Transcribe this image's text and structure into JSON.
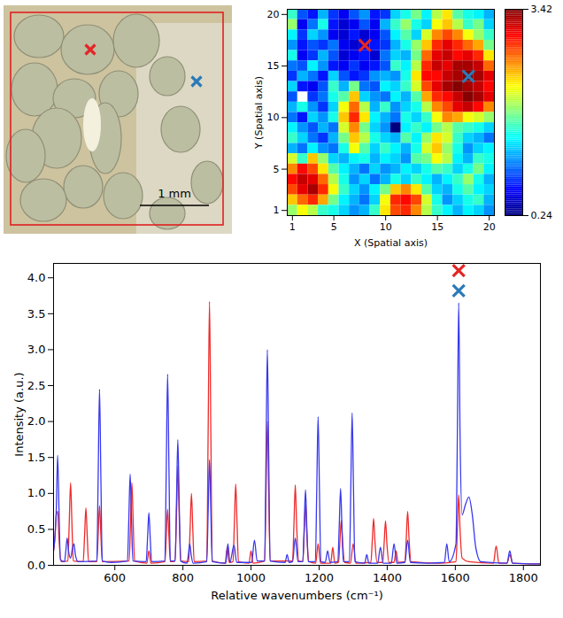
{
  "photo": {
    "scale_bar_label": "1 mm"
  },
  "chart_data": [
    {
      "type": "heatmap",
      "xlabel": "X (Spatial axis)",
      "ylabel": "Y (Spatial axis)",
      "x": [
        1,
        2,
        3,
        4,
        5,
        6,
        7,
        8,
        9,
        10,
        11,
        12,
        13,
        14,
        15,
        16,
        17,
        18,
        19,
        20
      ],
      "y": [
        20,
        19,
        18,
        17,
        16,
        15,
        14,
        13,
        12,
        11,
        10,
        9,
        8,
        7,
        6,
        5,
        4,
        3,
        2,
        1
      ],
      "values": [
        [
          1.6,
          0.9,
          0.7,
          1.2,
          0.8,
          0.6,
          0.9,
          1.1,
          0.7,
          0.8,
          1.3,
          1.5,
          1.8,
          1.4,
          2.0,
          2.3,
          1.7,
          1.5,
          1.4,
          1.2
        ],
        [
          1.9,
          0.6,
          1.0,
          1.5,
          0.7,
          0.5,
          0.6,
          0.9,
          0.6,
          1.2,
          1.6,
          1.9,
          1.5,
          1.3,
          2.2,
          2.4,
          2.0,
          1.6,
          1.8,
          1.3
        ],
        [
          1.4,
          0.8,
          1.3,
          1.1,
          0.6,
          0.5,
          0.7,
          0.5,
          0.6,
          0.9,
          1.4,
          1.7,
          1.3,
          2.1,
          2.6,
          2.8,
          2.6,
          2.2,
          1.9,
          1.6
        ],
        [
          1.1,
          0.7,
          0.9,
          0.8,
          1.0,
          0.6,
          0.5,
          0.5,
          0.7,
          0.8,
          1.2,
          1.5,
          1.9,
          2.4,
          2.9,
          3.1,
          2.9,
          2.7,
          2.5,
          1.8
        ],
        [
          1.5,
          0.6,
          0.8,
          1.2,
          0.9,
          0.5,
          0.6,
          0.7,
          0.5,
          1.0,
          1.3,
          1.2,
          1.8,
          2.7,
          3.1,
          3.2,
          3.0,
          3.1,
          2.9,
          2.3
        ],
        [
          1.0,
          0.9,
          1.4,
          1.1,
          0.7,
          0.6,
          0.8,
          0.6,
          0.7,
          0.9,
          1.6,
          1.4,
          2.0,
          2.9,
          3.2,
          3.1,
          3.3,
          3.3,
          3.2,
          2.7
        ],
        [
          0.8,
          1.2,
          1.0,
          0.7,
          1.3,
          0.9,
          0.7,
          0.8,
          1.1,
          1.2,
          1.1,
          1.5,
          2.3,
          3.0,
          3.0,
          3.2,
          3.3,
          3.42,
          3.3,
          3.1
        ],
        [
          1.3,
          0.7,
          0.6,
          0.9,
          1.6,
          1.2,
          1.8,
          1.0,
          0.9,
          1.4,
          1.3,
          1.6,
          2.1,
          2.8,
          3.1,
          3.3,
          3.4,
          3.3,
          3.2,
          3.0
        ],
        [
          0.9,
          null,
          0.8,
          1.0,
          1.5,
          1.7,
          2.4,
          1.3,
          1.1,
          1.0,
          1.4,
          1.2,
          1.7,
          2.5,
          2.9,
          3.0,
          3.2,
          3.4,
          3.3,
          3.1
        ],
        [
          1.2,
          1.5,
          1.1,
          0.8,
          1.3,
          2.2,
          2.7,
          2.0,
          1.2,
          1.6,
          1.1,
          1.3,
          1.5,
          2.0,
          2.6,
          2.8,
          3.1,
          3.2,
          3.0,
          2.6
        ],
        [
          1.0,
          0.7,
          1.3,
          1.1,
          1.5,
          2.4,
          2.9,
          2.3,
          1.4,
          1.2,
          1.0,
          1.5,
          1.3,
          1.6,
          2.2,
          2.6,
          2.5,
          2.2,
          2.1,
          1.9
        ],
        [
          1.4,
          1.1,
          0.9,
          1.2,
          1.0,
          2.1,
          2.6,
          1.8,
          1.3,
          1.1,
          0.24,
          1.4,
          1.6,
          1.4,
          1.8,
          2.0,
          1.7,
          1.6,
          1.5,
          1.3
        ],
        [
          1.6,
          1.3,
          1.0,
          0.8,
          1.2,
          1.8,
          2.4,
          2.0,
          1.5,
          1.3,
          1.2,
          1.7,
          1.4,
          1.9,
          2.3,
          2.1,
          1.6,
          1.3,
          1.2,
          1.0
        ],
        [
          1.2,
          1.0,
          1.4,
          1.1,
          1.0,
          1.5,
          2.2,
          1.7,
          1.3,
          1.6,
          1.4,
          1.2,
          1.5,
          2.1,
          2.4,
          1.9,
          1.5,
          1.1,
          1.3,
          1.4
        ],
        [
          2.1,
          1.6,
          2.4,
          1.9,
          1.3,
          1.2,
          1.4,
          1.5,
          1.2,
          1.4,
          1.3,
          1.1,
          1.7,
          1.8,
          2.2,
          2.0,
          1.4,
          1.2,
          1.6,
          1.5
        ],
        [
          2.6,
          3.0,
          2.8,
          2.3,
          1.7,
          1.4,
          1.2,
          1.0,
          1.3,
          1.1,
          1.2,
          1.4,
          1.3,
          1.5,
          1.7,
          1.6,
          1.3,
          1.5,
          1.8,
          1.4
        ],
        [
          3.0,
          3.2,
          3.1,
          2.7,
          2.0,
          1.5,
          1.1,
          1.3,
          1.0,
          1.2,
          1.5,
          1.3,
          1.6,
          1.4,
          1.2,
          1.4,
          1.6,
          1.9,
          1.5,
          1.2
        ],
        [
          2.8,
          3.1,
          3.3,
          2.9,
          2.2,
          1.6,
          1.3,
          1.1,
          1.4,
          1.8,
          2.4,
          2.6,
          2.3,
          1.7,
          1.3,
          1.2,
          1.5,
          1.7,
          1.4,
          1.3
        ],
        [
          2.4,
          2.7,
          2.9,
          2.5,
          1.8,
          1.4,
          1.2,
          1.0,
          1.3,
          2.2,
          2.9,
          3.0,
          2.8,
          2.1,
          1.5,
          1.1,
          1.3,
          1.5,
          1.6,
          1.2
        ],
        [
          1.9,
          2.2,
          2.0,
          1.6,
          1.5,
          1.3,
          1.1,
          1.2,
          1.6,
          2.3,
          2.8,
          2.9,
          2.6,
          2.0,
          1.6,
          1.4,
          1.2,
          1.4,
          1.3,
          1.1
        ]
      ],
      "xlim": [
        0.5,
        20.5
      ],
      "ylim": [
        0.5,
        20.5
      ],
      "xticks": [
        1,
        5,
        10,
        15,
        20
      ],
      "yticks": [
        1,
        5,
        10,
        15,
        20
      ],
      "colorbar": {
        "range": [
          0.24,
          3.42
        ],
        "ticks": [
          0.24,
          3.42
        ]
      },
      "annotations": [
        {
          "x": 8,
          "y": 17,
          "color": "#e32626",
          "marker": "x"
        },
        {
          "x": 18,
          "y": 14,
          "color": "#2a7ab8",
          "marker": "x"
        }
      ]
    },
    {
      "type": "line",
      "xlabel": "Relative wavenumbers (cm⁻¹)",
      "ylabel": "Intensity (a.u.)",
      "xlim": [
        420,
        1850
      ],
      "ylim": [
        0,
        4.2
      ],
      "xticks": [
        600,
        800,
        1000,
        1200,
        1400,
        1600,
        1800
      ],
      "yticks": [
        {
          "value": 0,
          "label": "0.0"
        },
        0.5,
        {
          "value": 1,
          "label": "1.0"
        },
        1.5,
        {
          "value": 2,
          "label": "2.0"
        },
        2.5,
        {
          "value": 3,
          "label": "3.0"
        },
        3.5,
        {
          "value": 4,
          "label": "4.0"
        }
      ],
      "series": [
        {
          "color": "#ee2a2a",
          "x": [
            420,
            424,
            428,
            432,
            436,
            442,
            462,
            466,
            470,
            474,
            478,
            507,
            511,
            515,
            519,
            523,
            547,
            551,
            555,
            559,
            563,
            642,
            646,
            650,
            654,
            658,
            694,
            700,
            706,
            747,
            751,
            755,
            759,
            763,
            777,
            781,
            785,
            789,
            795,
            817,
            821,
            825,
            829,
            833,
            870,
            874,
            878,
            882,
            886,
            924,
            930,
            936,
            947,
            951,
            955,
            959,
            963,
            994,
            1000,
            1006,
            1040,
            1044,
            1048,
            1052,
            1056,
            1122,
            1126,
            1130,
            1134,
            1140,
            1152,
            1156,
            1160,
            1164,
            1170,
            1190,
            1197,
            1204,
            1234,
            1240,
            1246,
            1257,
            1261,
            1265,
            1269,
            1275,
            1292,
            1300,
            1308,
            1352,
            1356,
            1360,
            1364,
            1370,
            1387,
            1391,
            1395,
            1399,
            1405,
            1420,
            1426,
            1432,
            1452,
            1456,
            1460,
            1464,
            1470,
            1550,
            1602,
            1606,
            1610,
            1614,
            1620,
            1640,
            1712,
            1720,
            1728,
            1752,
            1760,
            1768,
            1850
          ],
          "values": [
            0.2,
            0.38,
            0.7,
            0.75,
            0.38,
            0.05,
            0.06,
            0.58,
            1.15,
            0.58,
            0.06,
            0.05,
            0.4,
            0.8,
            0.4,
            0.05,
            0.05,
            0.42,
            0.83,
            0.42,
            0.05,
            0.06,
            0.58,
            1.15,
            0.58,
            0.06,
            0.03,
            0.2,
            0.03,
            0.05,
            0.39,
            0.78,
            0.39,
            0.05,
            0.06,
            0.69,
            1.38,
            0.69,
            0.06,
            0.05,
            0.5,
            1.0,
            0.5,
            0.05,
            0.06,
            1.84,
            3.67,
            1.84,
            0.06,
            0.03,
            0.25,
            0.04,
            0.05,
            0.57,
            1.13,
            0.57,
            0.05,
            0.03,
            0.2,
            0.03,
            0.06,
            1.0,
            2.0,
            1.0,
            0.06,
            0.06,
            0.56,
            1.12,
            0.56,
            0.06,
            0.05,
            0.43,
            0.85,
            0.43,
            0.05,
            0.03,
            0.3,
            0.03,
            0.03,
            0.25,
            0.03,
            0.04,
            0.32,
            0.63,
            0.32,
            0.04,
            0.03,
            0.3,
            0.03,
            0.04,
            0.33,
            0.65,
            0.33,
            0.04,
            0.04,
            0.31,
            0.62,
            0.31,
            0.04,
            0.04,
            0.2,
            0.04,
            0.05,
            0.38,
            0.75,
            0.38,
            0.05,
            0.03,
            0.05,
            0.49,
            0.98,
            0.49,
            0.1,
            0.05,
            0.03,
            0.27,
            0.03,
            0.03,
            0.15,
            0.03,
            0.02
          ]
        },
        {
          "color": "#3838ee",
          "x": [
            420,
            424,
            428,
            432,
            436,
            440,
            452,
            456,
            460,
            464,
            470,
            476,
            480,
            484,
            492,
            547,
            551,
            555,
            559,
            563,
            590,
            637,
            641,
            645,
            649,
            653,
            692,
            696,
            700,
            704,
            708,
            747,
            751,
            755,
            759,
            763,
            777,
            781,
            785,
            789,
            793,
            812,
            816,
            820,
            824,
            830,
            870,
            874,
            878,
            882,
            886,
            926,
            932,
            938,
            950,
            958,
            1002,
            1010,
            1018,
            1040,
            1044,
            1048,
            1052,
            1056,
            1100,
            1106,
            1112,
            1122,
            1130,
            1138,
            1152,
            1156,
            1160,
            1164,
            1168,
            1189,
            1193,
            1197,
            1201,
            1205,
            1218,
            1225,
            1232,
            1255,
            1259,
            1263,
            1267,
            1271,
            1289,
            1293,
            1297,
            1301,
            1305,
            1334,
            1340,
            1346,
            1372,
            1380,
            1388,
            1412,
            1420,
            1428,
            1452,
            1460,
            1468,
            1520,
            1568,
            1575,
            1582,
            1602,
            1606,
            1610,
            1614,
            1620,
            1630,
            1640,
            1650,
            1660,
            1675,
            1752,
            1760,
            1768,
            1850
          ],
          "values": [
            0.2,
            0.4,
            0.77,
            1.53,
            0.77,
            0.08,
            0.05,
            0.2,
            0.38,
            0.2,
            0.1,
            0.25,
            0.3,
            0.15,
            0.05,
            0.06,
            1.22,
            2.45,
            1.22,
            0.06,
            0.04,
            0.06,
            0.63,
            1.27,
            0.63,
            0.06,
            0.05,
            0.37,
            0.73,
            0.37,
            0.05,
            0.06,
            1.33,
            2.66,
            1.33,
            0.06,
            0.06,
            0.88,
            1.75,
            0.88,
            0.06,
            0.03,
            0.15,
            0.3,
            0.15,
            0.03,
            0.05,
            0.74,
            1.47,
            0.74,
            0.05,
            0.03,
            0.3,
            0.04,
            0.28,
            0.04,
            0.04,
            0.35,
            0.06,
            0.06,
            1.5,
            3.0,
            1.5,
            0.06,
            0.04,
            0.15,
            0.04,
            0.05,
            0.38,
            0.05,
            0.05,
            0.52,
            1.05,
            0.52,
            0.05,
            0.05,
            1.04,
            2.07,
            1.04,
            0.05,
            0.04,
            0.2,
            0.04,
            0.05,
            0.54,
            1.07,
            0.54,
            0.05,
            0.05,
            1.06,
            2.12,
            1.06,
            0.05,
            0.03,
            0.15,
            0.03,
            0.03,
            0.25,
            0.03,
            0.03,
            0.3,
            0.03,
            0.04,
            0.35,
            0.04,
            0.03,
            0.04,
            0.3,
            0.05,
            0.3,
            1.8,
            3.65,
            1.8,
            0.7,
            0.85,
            0.95,
            0.7,
            0.25,
            0.05,
            0.03,
            0.2,
            0.03,
            0.02
          ]
        }
      ],
      "annotations": [
        {
          "x": 1610,
          "y": 4.1,
          "color": "#e32626",
          "marker": "x"
        },
        {
          "x": 1610,
          "y": 3.82,
          "color": "#2a7ab8",
          "marker": "x"
        }
      ]
    }
  ]
}
